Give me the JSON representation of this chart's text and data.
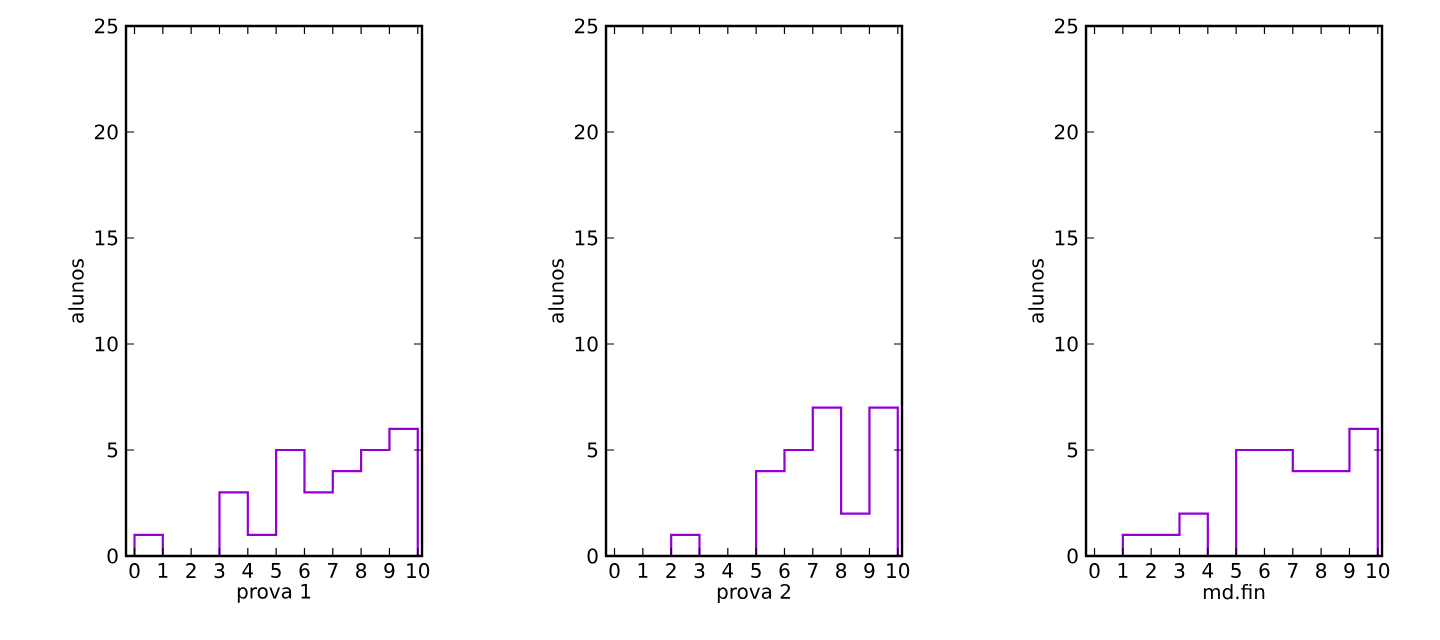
{
  "chart_data": [
    {
      "type": "histogram",
      "bins": [
        0,
        1,
        2,
        3,
        4,
        5,
        6,
        7,
        8,
        9,
        10
      ],
      "values": [
        1,
        0,
        0,
        3,
        1,
        5,
        3,
        4,
        5,
        6
      ],
      "color": "#9400d3",
      "xlim": [
        -0.3,
        10.15
      ],
      "xticks": [
        0,
        1,
        2,
        3,
        4,
        5,
        6,
        7,
        8,
        9,
        10
      ],
      "ylim": [
        0,
        25
      ],
      "yticks": [
        0,
        5,
        10,
        15,
        20,
        25
      ],
      "xlabel": "prova 1",
      "ylabel": "alunos",
      "grid": false
    },
    {
      "type": "histogram",
      "bins": [
        0,
        1,
        2,
        3,
        4,
        5,
        6,
        7,
        8,
        9,
        10
      ],
      "values": [
        0,
        0,
        1,
        0,
        0,
        4,
        5,
        7,
        2,
        7
      ],
      "color": "#9400d3",
      "xlim": [
        -0.3,
        10.15
      ],
      "xticks": [
        0,
        1,
        2,
        3,
        4,
        5,
        6,
        7,
        8,
        9,
        10
      ],
      "ylim": [
        0,
        25
      ],
      "yticks": [
        0,
        5,
        10,
        15,
        20,
        25
      ],
      "xlabel": "prova 2",
      "ylabel": "alunos",
      "grid": false
    },
    {
      "type": "histogram",
      "bins": [
        0,
        1,
        2,
        3,
        4,
        5,
        6,
        7,
        8,
        9,
        10
      ],
      "values": [
        0,
        1,
        1,
        2,
        0,
        5,
        5,
        4,
        4,
        6
      ],
      "color": "#9400d3",
      "xlim": [
        -0.3,
        10.15
      ],
      "xticks": [
        0,
        1,
        2,
        3,
        4,
        5,
        6,
        7,
        8,
        9,
        10
      ],
      "ylim": [
        0,
        25
      ],
      "yticks": [
        0,
        5,
        10,
        15,
        20,
        25
      ],
      "xlabel": "md.fin",
      "ylabel": "alunos",
      "grid": false
    }
  ]
}
